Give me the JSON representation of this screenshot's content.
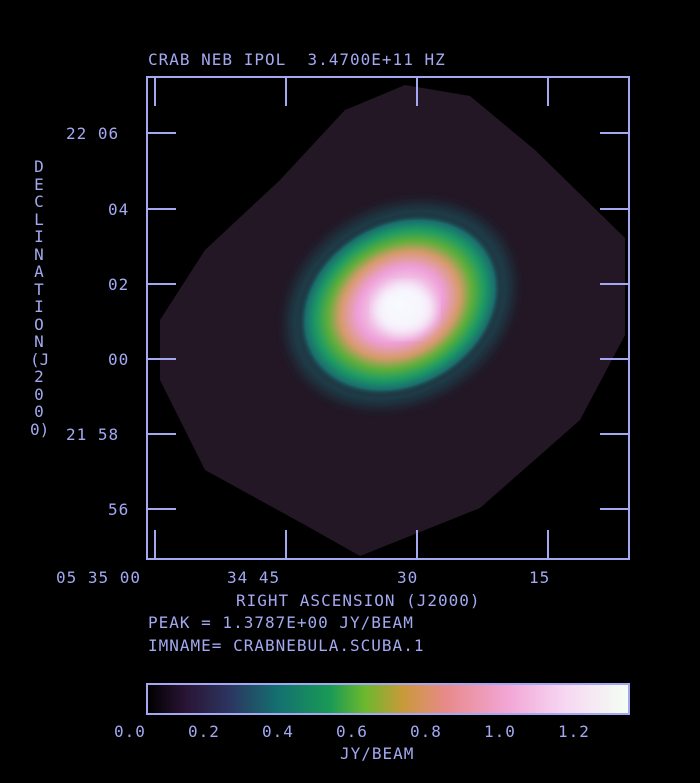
{
  "header": {
    "title": "CRAB NEB IPOL  3.4700E+11 HZ"
  },
  "axes": {
    "ylabel": "DECLINATION (J2000)",
    "xlabel": "RIGHT ASCENSION (J2000)",
    "yticks": [
      "22 06",
      "04",
      "02",
      "00",
      "21 58",
      "56"
    ],
    "xticks": [
      "05 35 00",
      "34 45",
      "30",
      "15"
    ]
  },
  "info": {
    "peak": "PEAK = 1.3787E+00 JY/BEAM",
    "imname": "IMNAME= CRABNEBULA.SCUBA.1"
  },
  "colorbar": {
    "ticks": [
      "0.0",
      "0.2",
      "0.4",
      "0.6",
      "0.8",
      "1.0",
      "1.2"
    ],
    "label": "JY/BEAM"
  },
  "colors": {
    "axis": "#a3a8f0",
    "background": "#000000",
    "field": "#231725"
  }
}
